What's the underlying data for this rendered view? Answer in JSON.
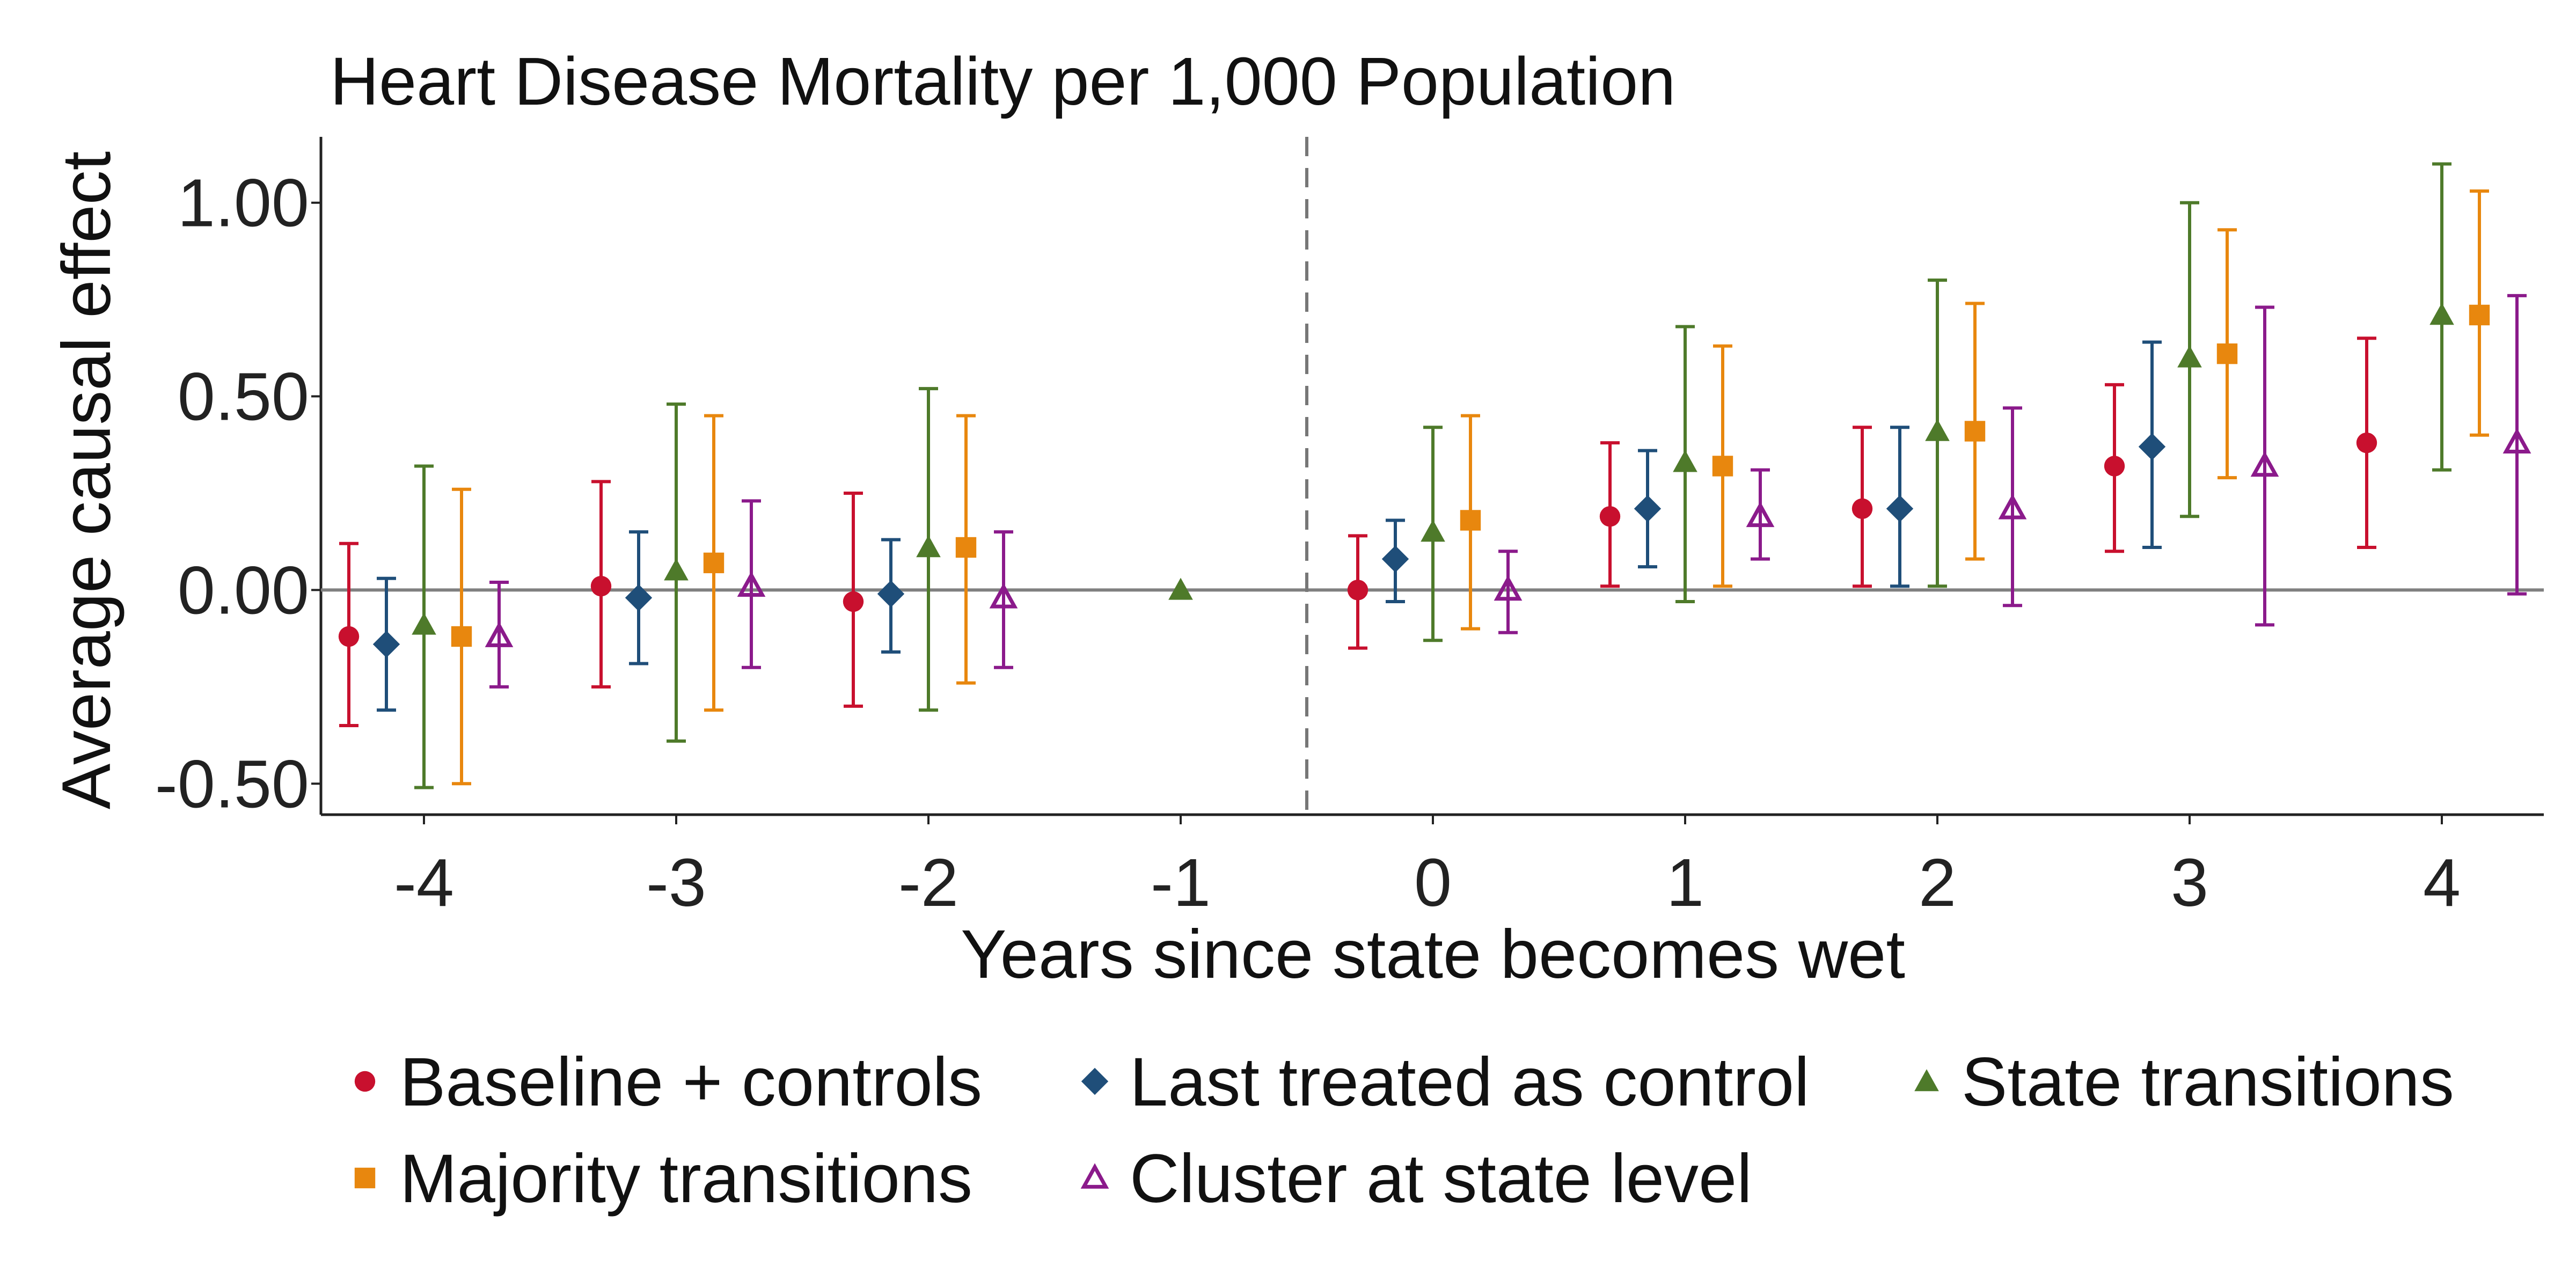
{
  "chart_data": {
    "type": "scatter",
    "title": "Heart Disease Mortality per 1,000 Population",
    "xlabel": "Years since state becomes wet",
    "ylabel": "Average causal effect",
    "ylim": [
      -0.58,
      1.17
    ],
    "y_ticks": [
      1.0,
      0.5,
      0.0,
      -0.5
    ],
    "y_tick_labels": [
      "1.00",
      "0.50",
      "0.00",
      "-0.50"
    ],
    "categories": [
      "-4",
      "-3",
      "-2",
      "-1",
      "0",
      "1",
      "2",
      "3",
      "4"
    ],
    "treatment_line_at": -0.5,
    "zero_line": true,
    "grid": false,
    "legend_position": "bottom",
    "series": [
      {
        "name": "Baseline + controls",
        "color": "#C8102E",
        "marker": "circle",
        "points": [
          {
            "x": -4,
            "y": -0.12,
            "lo": -0.35,
            "hi": 0.12
          },
          {
            "x": -3,
            "y": 0.01,
            "lo": -0.25,
            "hi": 0.28
          },
          {
            "x": -2,
            "y": -0.03,
            "lo": -0.3,
            "hi": 0.25
          },
          {
            "x": 0,
            "y": 0.0,
            "lo": -0.15,
            "hi": 0.14
          },
          {
            "x": 1,
            "y": 0.19,
            "lo": 0.01,
            "hi": 0.38
          },
          {
            "x": 2,
            "y": 0.21,
            "lo": 0.01,
            "hi": 0.42
          },
          {
            "x": 3,
            "y": 0.32,
            "lo": 0.1,
            "hi": 0.53
          },
          {
            "x": 4,
            "y": 0.38,
            "lo": 0.11,
            "hi": 0.65
          }
        ]
      },
      {
        "name": "Last treated as control",
        "color": "#1F4E79",
        "marker": "diamond",
        "points": [
          {
            "x": -4,
            "y": -0.14,
            "lo": -0.31,
            "hi": 0.03
          },
          {
            "x": -3,
            "y": -0.02,
            "lo": -0.19,
            "hi": 0.15
          },
          {
            "x": -2,
            "y": -0.01,
            "lo": -0.16,
            "hi": 0.13
          },
          {
            "x": 0,
            "y": 0.08,
            "lo": -0.03,
            "hi": 0.18
          },
          {
            "x": 1,
            "y": 0.21,
            "lo": 0.06,
            "hi": 0.36
          },
          {
            "x": 2,
            "y": 0.21,
            "lo": 0.01,
            "hi": 0.42
          },
          {
            "x": 3,
            "y": 0.37,
            "lo": 0.11,
            "hi": 0.64
          }
        ]
      },
      {
        "name": "State transitions",
        "color": "#4E7A2A",
        "marker": "triangle",
        "points": [
          {
            "x": -4,
            "y": -0.09,
            "lo": -0.51,
            "hi": 0.32
          },
          {
            "x": -3,
            "y": 0.05,
            "lo": -0.39,
            "hi": 0.48
          },
          {
            "x": -2,
            "y": 0.11,
            "lo": -0.31,
            "hi": 0.52
          },
          {
            "x": -1,
            "y": 0.0,
            "lo": null,
            "hi": null
          },
          {
            "x": 0,
            "y": 0.15,
            "lo": -0.13,
            "hi": 0.42
          },
          {
            "x": 1,
            "y": 0.33,
            "lo": -0.03,
            "hi": 0.68
          },
          {
            "x": 2,
            "y": 0.41,
            "lo": 0.01,
            "hi": 0.8
          },
          {
            "x": 3,
            "y": 0.6,
            "lo": 0.19,
            "hi": 1.0
          },
          {
            "x": 4,
            "y": 0.71,
            "lo": 0.31,
            "hi": 1.1
          }
        ]
      },
      {
        "name": "Majority transitions",
        "color": "#E8870E",
        "marker": "square",
        "points": [
          {
            "x": -4,
            "y": -0.12,
            "lo": -0.5,
            "hi": 0.26
          },
          {
            "x": -3,
            "y": 0.07,
            "lo": -0.31,
            "hi": 0.45
          },
          {
            "x": -2,
            "y": 0.11,
            "lo": -0.24,
            "hi": 0.45
          },
          {
            "x": 0,
            "y": 0.18,
            "lo": -0.1,
            "hi": 0.45
          },
          {
            "x": 1,
            "y": 0.32,
            "lo": 0.01,
            "hi": 0.63
          },
          {
            "x": 2,
            "y": 0.41,
            "lo": 0.08,
            "hi": 0.74
          },
          {
            "x": 3,
            "y": 0.61,
            "lo": 0.29,
            "hi": 0.93
          },
          {
            "x": 4,
            "y": 0.71,
            "lo": 0.4,
            "hi": 1.03
          }
        ]
      },
      {
        "name": "Cluster at state level",
        "color": "#8B1A8B",
        "marker": "triangle-open",
        "points": [
          {
            "x": -4,
            "y": -0.12,
            "lo": -0.25,
            "hi": 0.02
          },
          {
            "x": -3,
            "y": 0.01,
            "lo": -0.2,
            "hi": 0.23
          },
          {
            "x": -2,
            "y": -0.02,
            "lo": -0.2,
            "hi": 0.15
          },
          {
            "x": 0,
            "y": 0.0,
            "lo": -0.11,
            "hi": 0.1
          },
          {
            "x": 1,
            "y": 0.19,
            "lo": 0.08,
            "hi": 0.31
          },
          {
            "x": 2,
            "y": 0.21,
            "lo": -0.04,
            "hi": 0.47
          },
          {
            "x": 3,
            "y": 0.32,
            "lo": -0.09,
            "hi": 0.73
          },
          {
            "x": 4,
            "y": 0.38,
            "lo": -0.01,
            "hi": 0.76
          }
        ]
      }
    ]
  }
}
